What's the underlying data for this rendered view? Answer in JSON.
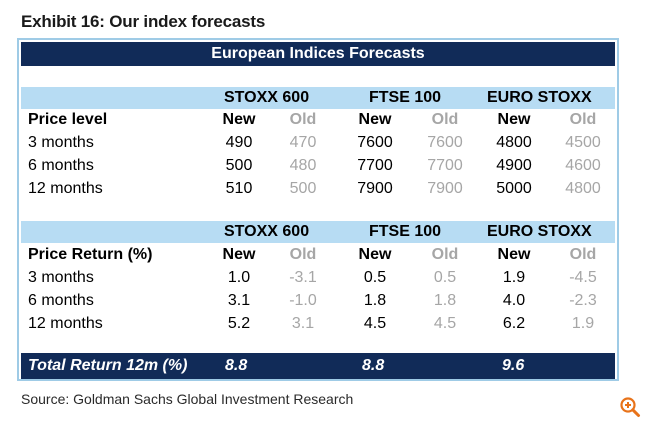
{
  "exhibit_title": "Exhibit 16: Our index forecasts",
  "table": {
    "banner": "European Indices Forecasts",
    "indices": [
      "STOXX 600",
      "FTSE 100",
      "EURO STOXX"
    ],
    "new_label": "New",
    "old_label": "Old",
    "price_level": {
      "label": "Price level",
      "rows": [
        {
          "label": "3 months",
          "values": [
            "490",
            "470",
            "7600",
            "7600",
            "4800",
            "4500"
          ]
        },
        {
          "label": "6 months",
          "values": [
            "500",
            "480",
            "7700",
            "7700",
            "4900",
            "4600"
          ]
        },
        {
          "label": "12 months",
          "values": [
            "510",
            "500",
            "7900",
            "7900",
            "5000",
            "4800"
          ]
        }
      ]
    },
    "price_return": {
      "label": "Price Return (%)",
      "rows": [
        {
          "label": "3 months",
          "values": [
            "1.0",
            "-3.1",
            "0.5",
            "0.5",
            "1.9",
            "-4.5"
          ]
        },
        {
          "label": "6 months",
          "values": [
            "3.1",
            "-1.0",
            "1.8",
            "1.8",
            "4.0",
            "-2.3"
          ]
        },
        {
          "label": "12 months",
          "values": [
            "5.2",
            "3.1",
            "4.5",
            "4.5",
            "6.2",
            "1.9"
          ]
        }
      ]
    },
    "total_return": {
      "label": "Total Return 12m (%)",
      "values": [
        "8.8",
        "8.8",
        "9.6"
      ]
    }
  },
  "source": "Source: Goldman Sachs Global Investment Research",
  "icons": {
    "zoom": "zoom-in-icon"
  },
  "colors": {
    "navy": "#112b58",
    "light_blue": "#b7dcf3",
    "border": "#9fcbe6",
    "old_grey": "#a6a6a6",
    "zoom_orange": "#e8731a"
  }
}
